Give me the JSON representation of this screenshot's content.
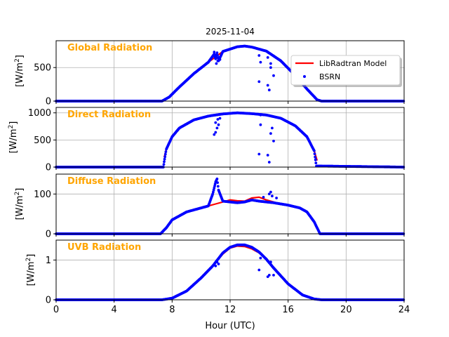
{
  "chart_data": {
    "type": "line",
    "title": "2025-11-04",
    "xlabel": "Hour (UTC)",
    "xlim": [
      0,
      24
    ],
    "xticks": [
      0,
      4,
      8,
      12,
      16,
      20,
      24
    ],
    "legend": {
      "placement": "right, first panel",
      "entries": [
        {
          "name": "LibRadtran Model",
          "color": "#ff0000",
          "style": "line"
        },
        {
          "name": "BSRN",
          "color": "#0000ff",
          "style": "dots"
        }
      ]
    },
    "panels": [
      {
        "name": "global",
        "label": "Global Radiation",
        "ylabel_main": "[W/m",
        "ylabel_sup": "2",
        "ylabel_end": "]",
        "ylim": [
          0,
          900
        ],
        "yticks": [
          0,
          500
        ],
        "series": [
          {
            "name": "LibRadtran Model",
            "x": [
              7.3,
              7.8,
              8.5,
              9.5,
              10.5,
              11.5,
              12.5,
              13,
              13.5,
              14.5,
              15.5,
              16.5,
              17.3,
              18.0,
              18.3
            ],
            "y": [
              0,
              60,
              210,
              410,
              580,
              740,
              810,
              820,
              805,
              745,
              600,
              380,
              180,
              20,
              0
            ]
          },
          {
            "name": "BSRN",
            "x": [
              0,
              7.3,
              7.8,
              8.5,
              9.5,
              10.5,
              10.9,
              11.0,
              11.1,
              11.2,
              11.5,
              12.5,
              13,
              13.5,
              14.5,
              15.5,
              16.5,
              17.3,
              18.0,
              18.3,
              24
            ],
            "y": [
              0,
              0,
              60,
              210,
              410,
              580,
              700,
              630,
              720,
              600,
              740,
              810,
              820,
              805,
              745,
              600,
              380,
              180,
              20,
              0,
              0
            ],
            "outliers": [
              [
                10.9,
                730
              ],
              [
                11.0,
                690
              ],
              [
                11.05,
                560
              ],
              [
                11.15,
                600
              ],
              [
                11.25,
                650
              ],
              [
                11.3,
                620
              ],
              [
                14.0,
                680
              ],
              [
                14.0,
                290
              ],
              [
                14.1,
                580
              ],
              [
                14.6,
                235
              ],
              [
                14.7,
                165
              ],
              [
                14.8,
                500
              ],
              [
                14.8,
                560
              ],
              [
                15.0,
                380
              ],
              [
                14.6,
                650
              ]
            ]
          }
        ]
      },
      {
        "name": "direct",
        "label": "Direct Radiation",
        "ylabel_main": "[W/m",
        "ylabel_sup": "2",
        "ylabel_end": "]",
        "ylim": [
          0,
          1100
        ],
        "yticks": [
          0,
          500,
          1000
        ],
        "series": [
          {
            "name": "LibRadtran Model",
            "x": [
              7.45,
              7.6,
              8.0,
              8.5,
              9.5,
              10.5,
              11.5,
              12.5,
              13.5,
              14.5,
              15.5,
              16.5,
              17.3,
              17.8,
              18.0
            ],
            "y": [
              180,
              330,
              560,
              720,
              870,
              940,
              985,
              1000,
              985,
              960,
              900,
              760,
              560,
              300,
              120
            ]
          },
          {
            "name": "BSRN",
            "x": [
              0,
              7.4,
              7.45,
              7.6,
              8.0,
              8.5,
              9.5,
              10.5,
              11.5,
              12.5,
              13.5,
              14.5,
              15.5,
              16.5,
              17.3,
              17.8,
              17.95,
              24
            ],
            "y": [
              0,
              0,
              100,
              330,
              560,
              720,
              870,
              940,
              980,
              1000,
              985,
              960,
              900,
              760,
              560,
              300,
              20,
              0
            ],
            "outliers": [
              [
                10.9,
                600
              ],
              [
                11.0,
                640
              ],
              [
                11.1,
                720
              ],
              [
                11.2,
                780
              ],
              [
                11.3,
                900
              ],
              [
                11.0,
                820
              ],
              [
                11.15,
                880
              ],
              [
                14.0,
                240
              ],
              [
                14.1,
                780
              ],
              [
                14.1,
                960
              ],
              [
                14.6,
                220
              ],
              [
                14.7,
                90
              ],
              [
                14.8,
                620
              ],
              [
                14.9,
                720
              ],
              [
                15.0,
                480
              ],
              [
                17.9,
                140
              ]
            ]
          }
        ]
      },
      {
        "name": "diffuse",
        "label": "Diffuse Radiation",
        "ylabel_main": "[W/m",
        "ylabel_sup": "2",
        "ylabel_end": "]",
        "ylim": [
          0,
          150
        ],
        "yticks": [
          0,
          100
        ],
        "series": [
          {
            "name": "LibRadtran Model",
            "x": [
              7.2,
              7.6,
              8.0,
              9.0,
              10.0,
              11.0,
              11.5,
              12.0,
              12.5,
              13.0,
              13.5,
              14.0,
              14.5,
              15.0,
              15.5,
              16.0,
              16.8,
              17.3,
              17.8,
              18.2
            ],
            "y": [
              0,
              15,
              35,
              55,
              65,
              75,
              80,
              85,
              83,
              82,
              90,
              92,
              85,
              80,
              75,
              72,
              65,
              55,
              30,
              0
            ]
          },
          {
            "name": "BSRN",
            "x": [
              0,
              7.2,
              7.6,
              8.0,
              9.0,
              10.0,
              10.5,
              10.8,
              11.0,
              11.1,
              11.2,
              11.5,
              12.0,
              12.5,
              13.0,
              13.5,
              14.0,
              14.5,
              15.0,
              15.5,
              16.0,
              16.8,
              17.3,
              17.8,
              18.2,
              24
            ],
            "y": [
              0,
              0,
              15,
              35,
              55,
              65,
              70,
              100,
              130,
              138,
              110,
              82,
              80,
              78,
              80,
              85,
              82,
              80,
              78,
              75,
              72,
              65,
              55,
              30,
              0,
              0
            ],
            "outliers": [
              [
                14.7,
                100
              ],
              [
                14.8,
                105
              ],
              [
                14.9,
                95
              ],
              [
                15.2,
                90
              ],
              [
                14.3,
                92
              ]
            ]
          }
        ]
      },
      {
        "name": "uvb",
        "label": "UVB Radiation",
        "ylabel_main": "[W/m",
        "ylabel_sup": "2",
        "ylabel_end": "]",
        "ylim": [
          0,
          1.5
        ],
        "yticks": [
          0,
          1
        ],
        "series": [
          {
            "name": "LibRadtran Model",
            "x": [
              7.3,
              8.0,
              9.0,
              10.0,
              10.8,
              11.5,
              12.0,
              12.5,
              13.0,
              13.5,
              14.0,
              14.5,
              15.0,
              16.0,
              17.0,
              17.8,
              18.3
            ],
            "y": [
              0,
              0.04,
              0.22,
              0.55,
              0.85,
              1.15,
              1.3,
              1.35,
              1.34,
              1.28,
              1.18,
              1.02,
              0.82,
              0.4,
              0.12,
              0.02,
              0
            ]
          },
          {
            "name": "BSRN",
            "x": [
              0,
              7.3,
              8.0,
              9.0,
              10.0,
              10.8,
              11.5,
              12.0,
              12.5,
              13.0,
              13.5,
              14.0,
              14.5,
              15.0,
              16.0,
              17.0,
              17.8,
              18.3,
              24
            ],
            "y": [
              0,
              0,
              0.04,
              0.22,
              0.55,
              0.85,
              1.18,
              1.32,
              1.38,
              1.38,
              1.32,
              1.2,
              1.02,
              0.8,
              0.4,
              0.12,
              0.02,
              0,
              0
            ],
            "outliers": [
              [
                11.0,
                0.85
              ],
              [
                11.1,
                0.95
              ],
              [
                11.2,
                0.9
              ],
              [
                14.0,
                0.75
              ],
              [
                14.1,
                1.05
              ],
              [
                14.6,
                0.58
              ],
              [
                14.7,
                0.62
              ],
              [
                15.0,
                0.62
              ],
              [
                14.8,
                0.95
              ]
            ]
          }
        ]
      }
    ]
  }
}
